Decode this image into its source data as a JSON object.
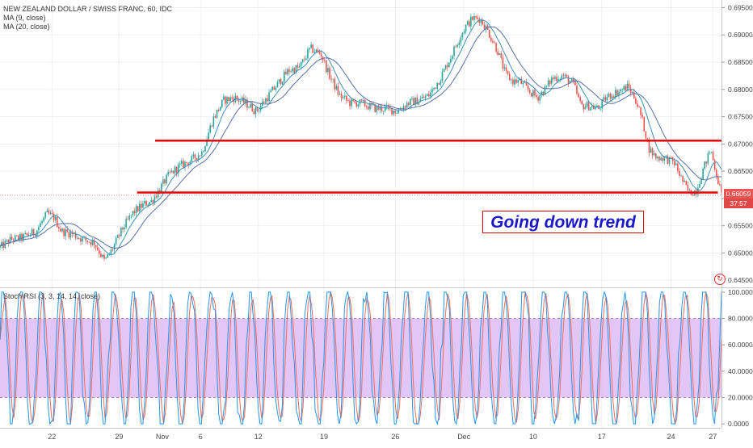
{
  "header": {
    "symbol_title": "NEW ZEALAND DOLLAR / SWISS FRANC, 60, IDC",
    "ma9_label": "MA (9, close)",
    "ma20_label": "MA (20, close)",
    "stoch_label": "Stoch RSI (3, 3, 14, 14, close)"
  },
  "annotation": {
    "text": "Going down trend"
  },
  "price_tags": {
    "last_price": "0.66059",
    "countdown": "37:57"
  },
  "colors": {
    "up_candle": "#26a69a",
    "down_candle": "#ef5350",
    "ma9": "#3d8eb9",
    "ma20": "#5b6fa8",
    "level_line": "#ee0000",
    "stoch_k": "#2196f3",
    "stoch_d": "#ef6c5a",
    "stoch_band": "#d9b3f5",
    "price_tag": "#ef5350",
    "grid": "#eef0f3"
  },
  "icons": {
    "reset": "reset-icon"
  },
  "chart_data": [
    {
      "type": "candlestick",
      "title": "NEW ZEALAND DOLLAR / SWISS FRANC, 60, IDC",
      "ylim": [
        0.6437,
        0.6964
      ],
      "y_ticks": [
        "0.69500",
        "0.69000",
        "0.68500",
        "0.68000",
        "0.67500",
        "0.67000",
        "0.66500",
        "0.66000",
        "0.65500",
        "0.65000",
        "0.64500"
      ],
      "y_tick_values": [
        0.695,
        0.69,
        0.685,
        0.68,
        0.675,
        0.67,
        0.665,
        0.66,
        0.655,
        0.65,
        0.645
      ],
      "x_ticks": [
        "22",
        "29",
        "Nov",
        "6",
        "12",
        "19",
        "26",
        "Dec",
        "10",
        "17",
        "24",
        "27"
      ],
      "x_tick_positions": [
        0.072,
        0.165,
        0.225,
        0.278,
        0.358,
        0.449,
        0.548,
        0.643,
        0.739,
        0.834,
        0.93,
        0.988
      ],
      "price_path": [
        [
          0.0,
          0.651
        ],
        [
          0.015,
          0.6525
        ],
        [
          0.03,
          0.6528
        ],
        [
          0.05,
          0.654
        ],
        [
          0.065,
          0.6572
        ],
        [
          0.075,
          0.6565
        ],
        [
          0.085,
          0.654
        ],
        [
          0.1,
          0.6535
        ],
        [
          0.115,
          0.6525
        ],
        [
          0.13,
          0.652
        ],
        [
          0.145,
          0.6485
        ],
        [
          0.155,
          0.6505
        ],
        [
          0.17,
          0.6545
        ],
        [
          0.185,
          0.6575
        ],
        [
          0.2,
          0.659
        ],
        [
          0.21,
          0.6595
        ],
        [
          0.22,
          0.6615
        ],
        [
          0.235,
          0.6645
        ],
        [
          0.25,
          0.666
        ],
        [
          0.265,
          0.667
        ],
        [
          0.28,
          0.6685
        ],
        [
          0.295,
          0.6745
        ],
        [
          0.31,
          0.678
        ],
        [
          0.325,
          0.6785
        ],
        [
          0.34,
          0.6775
        ],
        [
          0.355,
          0.676
        ],
        [
          0.37,
          0.6785
        ],
        [
          0.385,
          0.681
        ],
        [
          0.4,
          0.6835
        ],
        [
          0.415,
          0.684
        ],
        [
          0.43,
          0.6875
        ],
        [
          0.445,
          0.6865
        ],
        [
          0.455,
          0.683
        ],
        [
          0.47,
          0.679
        ],
        [
          0.485,
          0.6775
        ],
        [
          0.5,
          0.6775
        ],
        [
          0.51,
          0.677
        ],
        [
          0.52,
          0.6765
        ],
        [
          0.535,
          0.6765
        ],
        [
          0.55,
          0.676
        ],
        [
          0.565,
          0.6775
        ],
        [
          0.58,
          0.678
        ],
        [
          0.595,
          0.679
        ],
        [
          0.61,
          0.682
        ],
        [
          0.625,
          0.686
        ],
        [
          0.635,
          0.689
        ],
        [
          0.645,
          0.6915
        ],
        [
          0.655,
          0.693
        ],
        [
          0.665,
          0.693
        ],
        [
          0.675,
          0.691
        ],
        [
          0.69,
          0.687
        ],
        [
          0.7,
          0.683
        ],
        [
          0.71,
          0.6815
        ],
        [
          0.72,
          0.6815
        ],
        [
          0.735,
          0.6795
        ],
        [
          0.745,
          0.6785
        ],
        [
          0.755,
          0.68
        ],
        [
          0.765,
          0.682
        ],
        [
          0.78,
          0.6825
        ],
        [
          0.795,
          0.681
        ],
        [
          0.805,
          0.677
        ],
        [
          0.815,
          0.677
        ],
        [
          0.83,
          0.6765
        ],
        [
          0.84,
          0.6785
        ],
        [
          0.855,
          0.6795
        ],
        [
          0.87,
          0.6805
        ],
        [
          0.88,
          0.6785
        ],
        [
          0.89,
          0.6745
        ],
        [
          0.9,
          0.669
        ],
        [
          0.91,
          0.6675
        ],
        [
          0.92,
          0.6675
        ],
        [
          0.935,
          0.6665
        ],
        [
          0.945,
          0.6635
        ],
        [
          0.955,
          0.661
        ],
        [
          0.965,
          0.6615
        ],
        [
          0.975,
          0.6655
        ],
        [
          0.985,
          0.669
        ],
        [
          0.992,
          0.665
        ],
        [
          1.0,
          0.6606
        ]
      ],
      "last_price": 0.66059,
      "levels": [
        {
          "value": 0.6706,
          "x_start": 0.215,
          "x_end": 1.0
        },
        {
          "value": 0.6611,
          "x_start": 0.19,
          "x_end": 0.995
        }
      ]
    },
    {
      "type": "line",
      "title": "Stoch RSI (3, 3, 14, 14, close)",
      "ylim": [
        -3,
        103
      ],
      "y_ticks": [
        "100.0000",
        "80.0000",
        "60.0000",
        "40.0000",
        "20.0000",
        "0.0000"
      ],
      "y_tick_values": [
        100,
        80,
        60,
        40,
        20,
        0
      ],
      "band": [
        20,
        80
      ]
    }
  ]
}
